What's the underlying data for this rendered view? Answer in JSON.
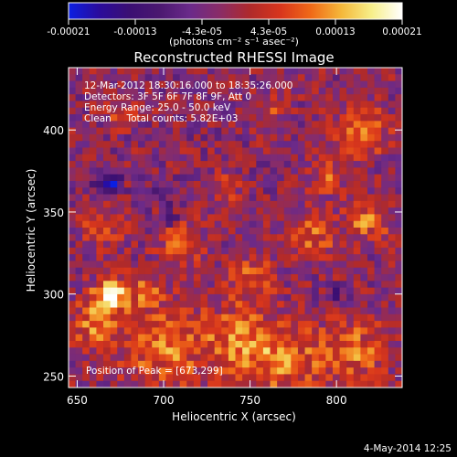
{
  "colorbar": {
    "range": [
      -0.00021,
      0.00021
    ],
    "tick_labels": [
      "-0.00021",
      "-0.00013",
      "-4.3e-05",
      "4.3e-05",
      "0.00013",
      "0.00021"
    ],
    "units_label": "(photons cm⁻² s⁻¹ asec⁻²)",
    "colormap": [
      "#0b1fe3",
      "#2a0b9c",
      "#3a0f73",
      "#4b1870",
      "#6a2a8a",
      "#8a2c66",
      "#b02a2a",
      "#d8361c",
      "#f06a18",
      "#f4b83a",
      "#f7ef8a",
      "#ffffff"
    ]
  },
  "chart_data": {
    "type": "heatmap",
    "title": "Reconstructed RHESSI Image",
    "xlabel": "Heliocentric X (arcsec)",
    "ylabel": "Heliocentric Y (arcsec)",
    "xlim": [
      645,
      838
    ],
    "ylim": [
      243,
      438
    ],
    "xticks": [
      650,
      700,
      750,
      800
    ],
    "yticks": [
      250,
      300,
      350,
      400
    ],
    "annotations": [
      "12-Mar-2012 18:30:16.000 to 18:35:26.000",
      "Detectors: 3F 5F 6F 7F 8F 9F, Att 0",
      "Energy Range: 25.0 - 50.0 keV",
      "Clean     Total counts: 5.82E+03"
    ],
    "peak_label": "Position of Peak = [673,299]",
    "features": [
      {
        "x": 668,
        "y": 367,
        "sigma": 4.5,
        "value": -0.00021
      },
      {
        "x": 670,
        "y": 300,
        "sigma": 7,
        "value": 0.00019
      },
      {
        "x": 660,
        "y": 282,
        "sigma": 10,
        "value": 0.00012
      },
      {
        "x": 690,
        "y": 302,
        "sigma": 6,
        "value": 0.0001
      },
      {
        "x": 700,
        "y": 268,
        "sigma": 18,
        "value": 0.00011
      },
      {
        "x": 745,
        "y": 272,
        "sigma": 14,
        "value": 0.00011
      },
      {
        "x": 770,
        "y": 258,
        "sigma": 16,
        "value": 0.0001
      },
      {
        "x": 810,
        "y": 265,
        "sigma": 14,
        "value": 0.0001
      },
      {
        "x": 665,
        "y": 340,
        "sigma": 8,
        "value": 9e-05
      },
      {
        "x": 710,
        "y": 332,
        "sigma": 9,
        "value": 9e-05
      },
      {
        "x": 750,
        "y": 310,
        "sigma": 10,
        "value": 9e-05
      },
      {
        "x": 785,
        "y": 335,
        "sigma": 10,
        "value": 0.0001
      },
      {
        "x": 818,
        "y": 345,
        "sigma": 9,
        "value": 0.00011
      },
      {
        "x": 815,
        "y": 400,
        "sigma": 10,
        "value": 0.00013
      },
      {
        "x": 795,
        "y": 372,
        "sigma": 7,
        "value": 9e-05
      },
      {
        "x": 735,
        "y": 365,
        "sigma": 6,
        "value": 8e-05
      },
      {
        "x": 675,
        "y": 410,
        "sigma": 6,
        "value": 7e-05
      },
      {
        "x": 760,
        "y": 412,
        "sigma": 6,
        "value": 7e-05
      },
      {
        "x": 700,
        "y": 360,
        "sigma": 4,
        "value": -8e-05
      },
      {
        "x": 705,
        "y": 345,
        "sigma": 3,
        "value": -0.0001
      },
      {
        "x": 800,
        "y": 300,
        "sigma": 4,
        "value": -7e-05
      }
    ],
    "background_value": -2e-05,
    "noise_amplitude": 6e-05
  },
  "footer": {
    "timestamp": "4-May-2014 12:25"
  }
}
